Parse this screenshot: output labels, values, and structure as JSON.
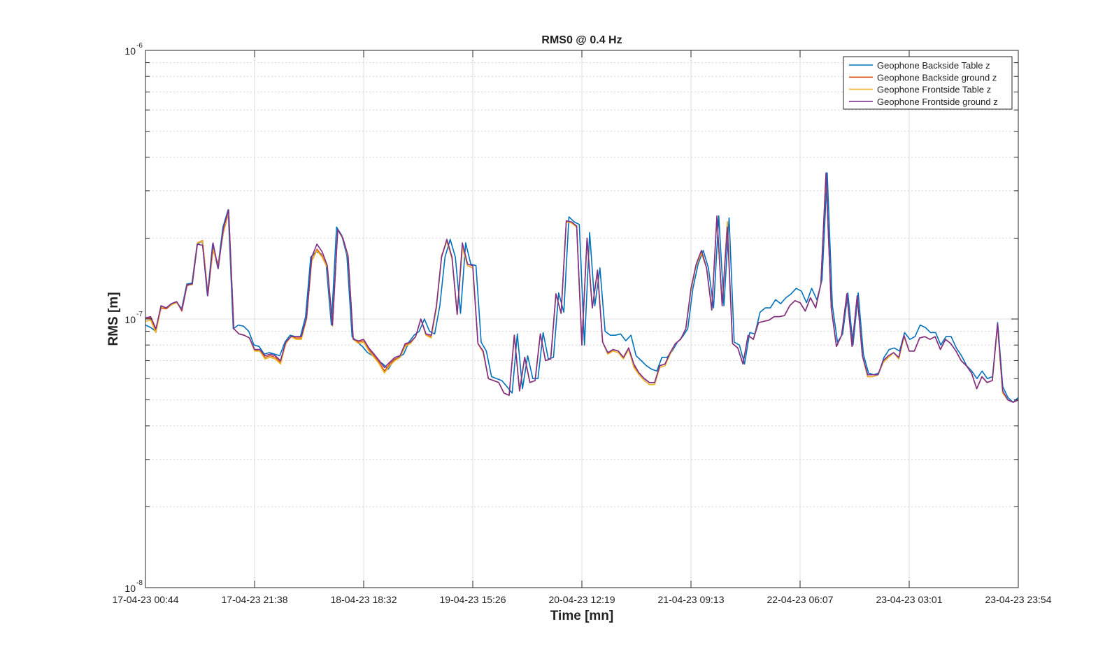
{
  "chart_data": {
    "type": "line",
    "title": "RMS0 @ 0.4 Hz",
    "xlabel": "Time [mn]",
    "ylabel": "RMS [m]",
    "yscale": "log",
    "ylim": [
      1e-08,
      1e-06
    ],
    "y_ticks": [
      {
        "base": "10",
        "exp": "-8",
        "value": 1e-08
      },
      {
        "base": "10",
        "exp": "-7",
        "value": 1e-07
      },
      {
        "base": "10",
        "exp": "-6",
        "value": 1e-06
      }
    ],
    "x_tick_labels": [
      "17-04-23 00:44",
      "17-04-23 21:38",
      "18-04-23 18:32",
      "19-04-23 15:26",
      "20-04-23 12:19",
      "21-04-23 09:13",
      "22-04-23 06:07",
      "23-04-23 03:01",
      "23-04-23 23:54"
    ],
    "grid": true,
    "legend_position": "top-right",
    "series": [
      {
        "name": "Geophone Backside Table z",
        "color": "#0072BD",
        "values": [
          0.95,
          0.93,
          0.9,
          1.12,
          1.1,
          1.14,
          1.16,
          1.09,
          1.35,
          1.36,
          1.9,
          1.95,
          1.22,
          1.9,
          1.55,
          2.2,
          2.55,
          0.92,
          0.95,
          0.94,
          0.9,
          0.8,
          0.79,
          0.74,
          0.75,
          0.74,
          0.73,
          0.82,
          0.87,
          0.86,
          0.86,
          1.02,
          1.7,
          1.78,
          1.75,
          1.58,
          0.95,
          2.2,
          2.05,
          1.72,
          0.86,
          0.82,
          0.79,
          0.75,
          0.73,
          0.7,
          0.68,
          0.65,
          0.7,
          0.72,
          0.74,
          0.82,
          0.87,
          0.9,
          1.0,
          0.9,
          0.88,
          1.12,
          1.7,
          1.98,
          1.7,
          1.05,
          1.92,
          1.6,
          1.58,
          0.82,
          0.76,
          0.61,
          0.6,
          0.59,
          0.56,
          0.53,
          0.88,
          0.55,
          0.73,
          0.6,
          0.6,
          0.89,
          0.71,
          0.72,
          1.25,
          1.06,
          2.4,
          2.3,
          2.25,
          0.8,
          2.1,
          1.12,
          1.55,
          0.9,
          0.87,
          0.87,
          0.88,
          0.83,
          0.87,
          0.73,
          0.7,
          0.67,
          0.65,
          0.64,
          0.72,
          0.72,
          0.76,
          0.82,
          0.86,
          0.92,
          1.3,
          1.6,
          1.8,
          1.55,
          1.1,
          2.42,
          1.12,
          2.38,
          0.82,
          0.8,
          0.68,
          0.89,
          0.88,
          1.06,
          1.1,
          1.1,
          1.18,
          1.14,
          1.2,
          1.24,
          1.3,
          1.27,
          1.15,
          1.3,
          1.18,
          1.4,
          3.5,
          1.12,
          0.82,
          0.88,
          1.25,
          0.8,
          1.25,
          0.74,
          0.63,
          0.62,
          0.63,
          0.72,
          0.77,
          0.78,
          0.76,
          0.89,
          0.84,
          0.86,
          0.95,
          0.93,
          0.89,
          0.89,
          0.8,
          0.86,
          0.86,
          0.78,
          0.73,
          0.67,
          0.64,
          0.6,
          0.64,
          0.6,
          0.61,
          0.97,
          0.56,
          0.51,
          0.49,
          0.51
        ]
      },
      {
        "name": "Geophone Backside ground z",
        "color": "#D95319",
        "values": [
          1.0,
          1.01,
          0.9,
          1.1,
          1.09,
          1.13,
          1.16,
          1.07,
          1.33,
          1.35,
          1.92,
          1.96,
          1.24,
          1.8,
          1.6,
          2.1,
          2.5,
          0.92,
          0.88,
          0.87,
          0.85,
          0.77,
          0.76,
          0.72,
          0.73,
          0.72,
          0.69,
          0.81,
          0.86,
          0.85,
          0.85,
          1.0,
          1.65,
          1.82,
          1.72,
          1.55,
          0.95,
          2.15,
          2.0,
          1.7,
          0.84,
          0.82,
          0.83,
          0.77,
          0.73,
          0.69,
          0.64,
          0.68,
          0.71,
          0.72,
          0.8,
          0.82,
          0.86,
          1.0,
          0.87,
          0.86,
          1.1,
          1.72,
          1.95,
          1.68,
          1.04,
          1.85,
          1.58,
          1.55,
          0.81,
          0.75,
          0.6,
          0.59,
          0.58,
          0.53,
          0.52,
          0.87,
          0.54,
          0.72,
          0.58,
          0.59,
          0.88,
          0.7,
          0.71,
          1.24,
          1.05,
          2.3,
          2.28,
          2.2,
          0.8,
          2.0,
          1.1,
          1.5,
          0.82,
          0.74,
          0.77,
          0.76,
          0.72,
          0.78,
          0.67,
          0.63,
          0.6,
          0.58,
          0.58,
          0.67,
          0.68,
          0.75,
          0.81,
          0.84,
          0.92,
          1.28,
          1.58,
          1.76,
          1.55,
          1.08,
          2.4,
          1.12,
          2.3,
          0.81,
          0.78,
          0.68,
          0.87,
          0.84,
          0.97,
          0.98,
          0.99,
          1.02,
          1.02,
          1.03,
          1.12,
          1.17,
          1.15,
          1.07,
          1.2,
          1.1,
          1.35,
          3.48,
          1.1,
          0.79,
          0.87,
          1.24,
          0.79,
          1.22,
          0.73,
          0.61,
          0.61,
          0.62,
          0.69,
          0.72,
          0.75,
          0.71,
          0.86,
          0.76,
          0.76,
          0.85,
          0.86,
          0.84,
          0.86,
          0.77,
          0.84,
          0.81,
          0.76,
          0.7,
          0.67,
          0.63,
          0.55,
          0.61,
          0.58,
          0.59,
          0.95,
          0.53,
          0.5,
          0.49,
          0.5
        ]
      },
      {
        "name": "Geophone Frontside Table z",
        "color": "#EDB120",
        "values": [
          0.98,
          0.99,
          0.89,
          1.11,
          1.1,
          1.13,
          1.15,
          1.08,
          1.34,
          1.34,
          1.92,
          1.95,
          1.23,
          1.82,
          1.57,
          2.12,
          2.52,
          0.92,
          0.88,
          0.87,
          0.85,
          0.76,
          0.76,
          0.71,
          0.72,
          0.71,
          0.68,
          0.81,
          0.86,
          0.84,
          0.84,
          1.0,
          1.64,
          1.8,
          1.7,
          1.55,
          0.94,
          2.15,
          2.0,
          1.7,
          0.84,
          0.81,
          0.82,
          0.76,
          0.72,
          0.68,
          0.63,
          0.67,
          0.7,
          0.72,
          0.79,
          0.81,
          0.86,
          1.0,
          0.87,
          0.85,
          1.1,
          1.7,
          1.95,
          1.68,
          1.04,
          1.85,
          1.58,
          1.55,
          0.81,
          0.75,
          0.6,
          0.59,
          0.58,
          0.53,
          0.52,
          0.87,
          0.54,
          0.72,
          0.58,
          0.59,
          0.88,
          0.7,
          0.71,
          1.24,
          1.05,
          2.3,
          2.28,
          2.2,
          0.8,
          2.0,
          1.1,
          1.5,
          0.82,
          0.74,
          0.76,
          0.75,
          0.71,
          0.77,
          0.66,
          0.62,
          0.59,
          0.57,
          0.57,
          0.66,
          0.67,
          0.74,
          0.81,
          0.84,
          0.92,
          1.28,
          1.58,
          1.76,
          1.55,
          1.08,
          2.4,
          1.12,
          2.3,
          0.81,
          0.78,
          0.68,
          0.87,
          0.84,
          0.97,
          0.98,
          0.99,
          1.02,
          1.02,
          1.03,
          1.12,
          1.17,
          1.15,
          1.07,
          1.2,
          1.1,
          1.35,
          3.48,
          1.1,
          0.79,
          0.87,
          1.24,
          0.79,
          1.22,
          0.73,
          0.61,
          0.61,
          0.62,
          0.69,
          0.72,
          0.75,
          0.71,
          0.86,
          0.76,
          0.76,
          0.85,
          0.86,
          0.84,
          0.86,
          0.77,
          0.84,
          0.81,
          0.76,
          0.7,
          0.67,
          0.63,
          0.55,
          0.61,
          0.58,
          0.59,
          0.95,
          0.53,
          0.5,
          0.49,
          0.5
        ]
      },
      {
        "name": "Geophone Frontside ground z",
        "color": "#7E2F8E",
        "values": [
          1.01,
          1.02,
          0.92,
          1.12,
          1.1,
          1.14,
          1.16,
          1.08,
          1.34,
          1.35,
          1.9,
          1.88,
          1.22,
          1.92,
          1.54,
          2.18,
          2.55,
          0.92,
          0.88,
          0.87,
          0.85,
          0.77,
          0.77,
          0.73,
          0.74,
          0.73,
          0.7,
          0.82,
          0.86,
          0.86,
          0.86,
          1.01,
          1.7,
          1.9,
          1.78,
          1.58,
          0.95,
          2.15,
          2.0,
          1.72,
          0.84,
          0.83,
          0.84,
          0.78,
          0.74,
          0.7,
          0.66,
          0.69,
          0.72,
          0.73,
          0.81,
          0.82,
          0.86,
          1.0,
          0.88,
          0.87,
          1.12,
          1.7,
          1.98,
          1.7,
          1.04,
          1.92,
          1.6,
          1.58,
          0.81,
          0.76,
          0.6,
          0.59,
          0.58,
          0.53,
          0.52,
          0.87,
          0.54,
          0.72,
          0.58,
          0.59,
          0.88,
          0.7,
          0.71,
          1.24,
          1.05,
          2.32,
          2.3,
          2.22,
          0.8,
          2.0,
          1.1,
          1.52,
          0.82,
          0.75,
          0.77,
          0.76,
          0.72,
          0.78,
          0.68,
          0.63,
          0.6,
          0.58,
          0.58,
          0.67,
          0.68,
          0.75,
          0.81,
          0.84,
          0.92,
          1.3,
          1.6,
          1.8,
          1.55,
          1.08,
          2.42,
          1.12,
          2.2,
          0.81,
          0.78,
          0.68,
          0.87,
          0.84,
          0.97,
          0.98,
          0.99,
          1.02,
          1.02,
          1.03,
          1.12,
          1.17,
          1.15,
          1.07,
          1.2,
          1.1,
          1.35,
          3.5,
          1.1,
          0.79,
          0.87,
          1.24,
          0.79,
          1.22,
          0.73,
          0.62,
          0.62,
          0.62,
          0.7,
          0.73,
          0.75,
          0.72,
          0.87,
          0.76,
          0.76,
          0.85,
          0.86,
          0.84,
          0.86,
          0.77,
          0.84,
          0.81,
          0.76,
          0.7,
          0.67,
          0.63,
          0.55,
          0.61,
          0.58,
          0.59,
          0.96,
          0.54,
          0.5,
          0.49,
          0.5
        ]
      }
    ]
  }
}
